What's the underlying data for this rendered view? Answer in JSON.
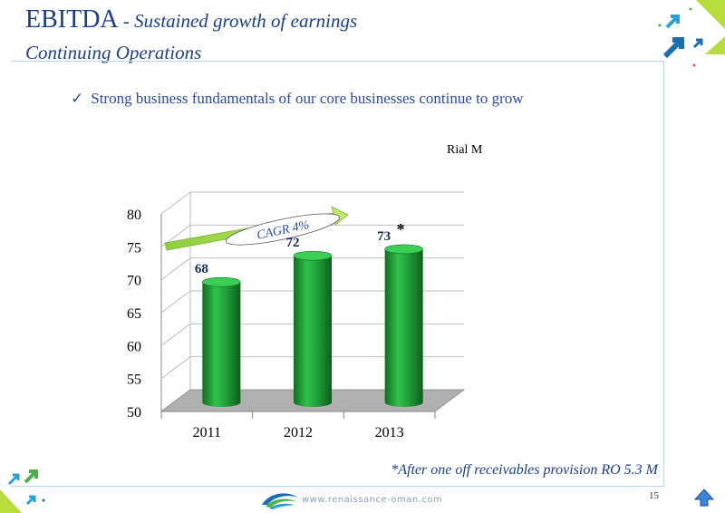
{
  "header": {
    "title": "EBITDA",
    "title_suffix": " - Sustained growth of earnings",
    "subtitle": "Continuing Operations"
  },
  "bullet": {
    "check": "✓",
    "text": "Strong business fundamentals of our core businesses continue to grow"
  },
  "unit_label": "Rial M",
  "footnote": "*After one off  receivables  provision RO 5.3 M",
  "footer": {
    "url": "www.renaissance-oman.com",
    "page": "15"
  },
  "icons": {
    "logo": "renaissance-logo-icon",
    "home": "home-arrow-icon",
    "decor": "arrows-decoration-icon"
  },
  "colors": {
    "bar": "#22a33a",
    "bar_dark": "#0f6e20",
    "title": "#1a3e8c",
    "arrow": "#a8d84a",
    "floor": "#b0b0b0"
  },
  "chart_data": {
    "type": "bar",
    "categories": [
      "2011",
      "2012",
      "2013"
    ],
    "values": [
      68,
      72,
      73
    ],
    "labels": [
      "68",
      "72",
      "73"
    ],
    "asterisk_on": "2013",
    "asterisk": "*",
    "yticks": [
      "80",
      "75",
      "70",
      "65",
      "60",
      "55",
      "50"
    ],
    "ylim": [
      50,
      80
    ],
    "grid": true,
    "annotation": "CAGR 4%"
  }
}
